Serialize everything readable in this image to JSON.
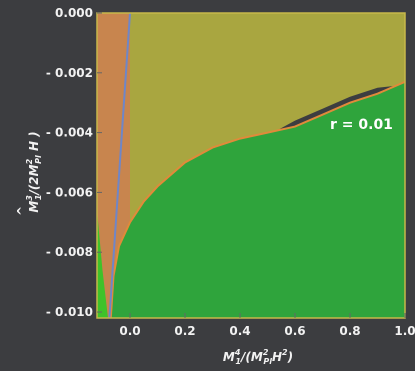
{
  "chart_data": {
    "type": "area",
    "title": "",
    "xlabel": {
      "base": "M",
      "sup": "4",
      "sub": "1",
      "rest_pre": "/(M",
      "rest_sup": "2",
      "rest_sub": "Pl",
      "rest_post": "H",
      "rest_sup2": "2",
      "close": ")"
    },
    "ylabel": {
      "hat": "^",
      "base": "M",
      "sup": "3",
      "sub": "1",
      "rest_pre": "/(2M",
      "rest_sup": "2",
      "rest_sub": "Pl",
      "rest_post": " H )"
    },
    "xlim": [
      -0.12,
      1.0
    ],
    "ylim": [
      -0.0102,
      0.0
    ],
    "x_ticks": [
      "0.0",
      "0.2",
      "0.4",
      "0.6",
      "0.8",
      "1.0"
    ],
    "x_tick_values": [
      0.0,
      0.2,
      0.4,
      0.6,
      0.8,
      1.0
    ],
    "y_ticks": [
      "0.000",
      "- 0.002",
      "- 0.004",
      "- 0.006",
      "- 0.008",
      "- 0.010"
    ],
    "y_tick_values": [
      0.0,
      -0.002,
      -0.004,
      -0.006,
      -0.008,
      -0.01
    ],
    "annotation": "r = 0.01",
    "grid": false,
    "regions": [
      {
        "role": "orange-region",
        "color": "#c8854e",
        "points": [
          [
            -0.12,
            0.0
          ],
          [
            0.0,
            0.0
          ],
          [
            0.0,
            -0.0102
          ],
          [
            -0.12,
            -0.0102
          ]
        ]
      },
      {
        "role": "olive-region",
        "color": "#a9a640",
        "points": [
          [
            0.0,
            0.0
          ],
          [
            1.0,
            0.0
          ],
          [
            1.0,
            -0.0024
          ],
          [
            0.9,
            -0.0025
          ],
          [
            0.8,
            -0.0028
          ],
          [
            0.7,
            -0.0032
          ],
          [
            0.6,
            -0.0036
          ],
          [
            0.5,
            -0.0041
          ],
          [
            0.4,
            -0.0046
          ],
          [
            0.3,
            -0.0052
          ],
          [
            0.2,
            -0.006
          ],
          [
            0.1,
            -0.0069
          ],
          [
            0.04,
            -0.0076
          ],
          [
            0.0,
            -0.0082
          ]
        ]
      },
      {
        "role": "dark-gray-band",
        "color": "#505054",
        "points": [
          [
            -0.07,
            -0.0102
          ],
          [
            -0.06,
            -0.0088
          ],
          [
            -0.04,
            -0.0078
          ],
          [
            0.0,
            -0.007
          ],
          [
            0.05,
            -0.0063
          ],
          [
            0.1,
            -0.0058
          ],
          [
            0.2,
            -0.005
          ],
          [
            0.3,
            -0.0045
          ],
          [
            0.4,
            -0.0042
          ],
          [
            0.5,
            -0.004
          ],
          [
            0.4,
            -0.0046
          ],
          [
            0.3,
            -0.0052
          ],
          [
            0.2,
            -0.006
          ],
          [
            0.1,
            -0.0069
          ],
          [
            0.04,
            -0.0076
          ],
          [
            0.0,
            -0.0082
          ],
          [
            -0.03,
            -0.0093
          ],
          [
            -0.05,
            -0.0102
          ]
        ]
      },
      {
        "role": "green-region",
        "color": "#2fa43c",
        "points": [
          [
            1.0,
            -0.0023
          ],
          [
            0.9,
            -0.0027
          ],
          [
            0.8,
            -0.003
          ],
          [
            0.7,
            -0.0034
          ],
          [
            0.6,
            -0.0038
          ],
          [
            0.5,
            -0.004
          ],
          [
            0.4,
            -0.0042
          ],
          [
            0.3,
            -0.0045
          ],
          [
            0.2,
            -0.005
          ],
          [
            0.1,
            -0.0058
          ],
          [
            0.05,
            -0.0063
          ],
          [
            0.0,
            -0.007
          ],
          [
            -0.04,
            -0.0078
          ],
          [
            -0.06,
            -0.0088
          ],
          [
            -0.07,
            -0.0102
          ],
          [
            1.0,
            -0.0102
          ]
        ]
      },
      {
        "role": "bright-green-sliver",
        "color": "#3fc22a",
        "points": [
          [
            -0.12,
            -0.0066
          ],
          [
            -0.1,
            -0.0086
          ],
          [
            -0.08,
            -0.0102
          ],
          [
            -0.12,
            -0.0102
          ]
        ]
      }
    ],
    "curves": [
      {
        "role": "orange-boundary",
        "color": "#e08a3a",
        "points": [
          [
            -0.07,
            -0.0102
          ],
          [
            -0.06,
            -0.0088
          ],
          [
            -0.04,
            -0.0078
          ],
          [
            0.0,
            -0.007
          ],
          [
            0.05,
            -0.0063
          ],
          [
            0.1,
            -0.0058
          ],
          [
            0.2,
            -0.005
          ],
          [
            0.3,
            -0.0045
          ],
          [
            0.4,
            -0.0042
          ],
          [
            0.5,
            -0.004
          ],
          [
            0.6,
            -0.0038
          ],
          [
            0.7,
            -0.0034
          ],
          [
            0.8,
            -0.003
          ],
          [
            0.9,
            -0.0027
          ],
          [
            1.0,
            -0.0023
          ]
        ]
      },
      {
        "role": "blue-line",
        "color": "#6f86c8",
        "points": [
          [
            -0.075,
            -0.0102
          ],
          [
            0.0,
            0.0
          ]
        ]
      }
    ]
  }
}
